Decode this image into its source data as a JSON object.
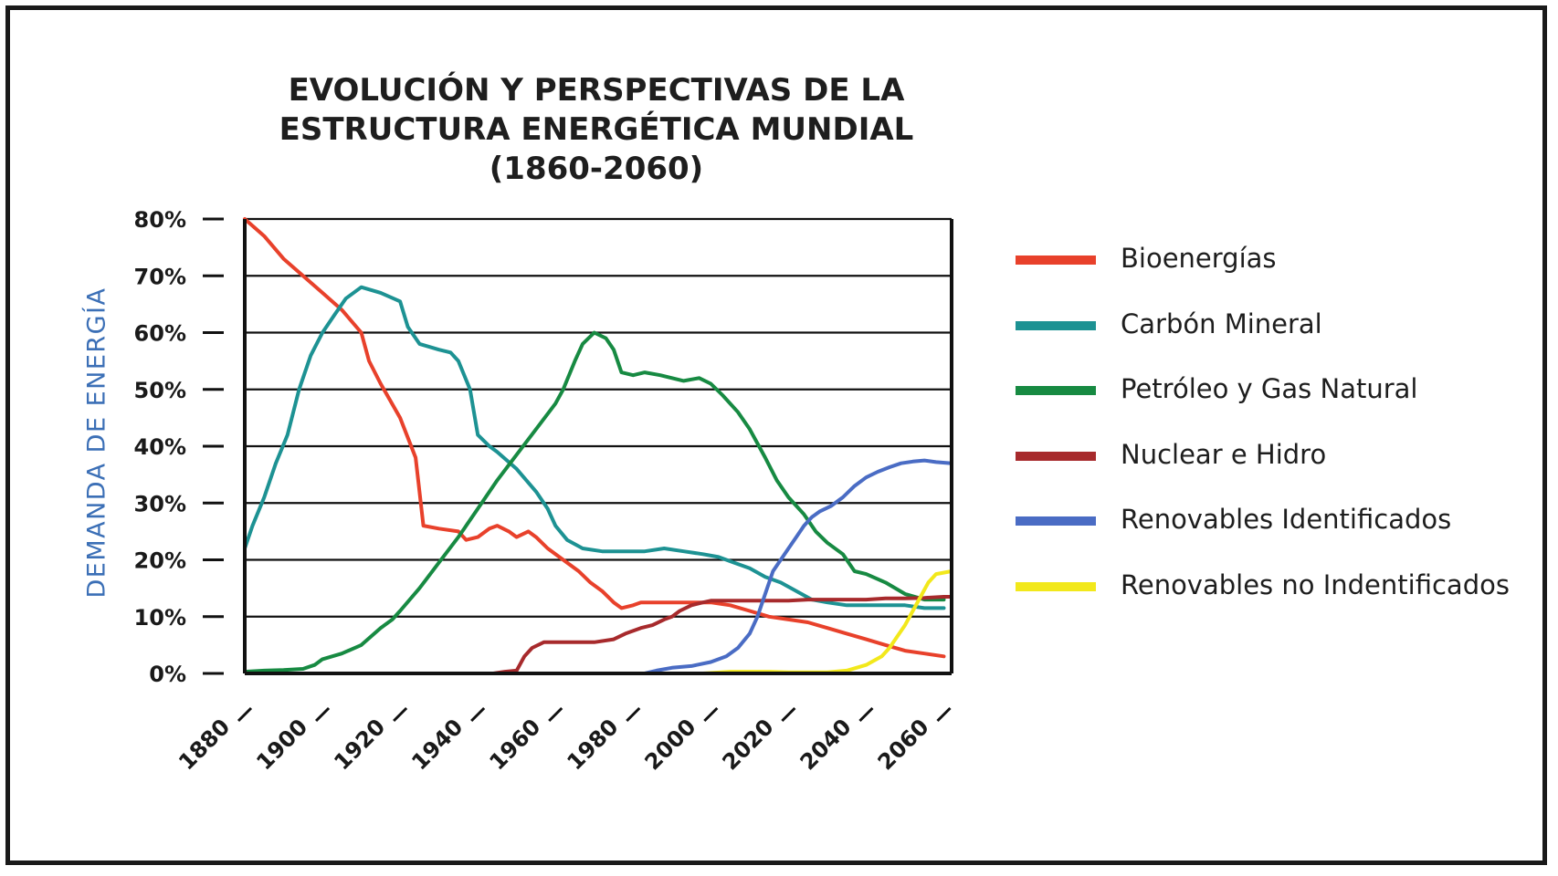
{
  "chart_data": {
    "type": "line",
    "title_lines": [
      "EVOLUCIÓN Y PERSPECTIVAS DE LA",
      "ESTRUCTURA ENERGÉTICA MUNDIAL",
      "(1860-2060)"
    ],
    "xlabel": "",
    "ylabel": "DEMANDA DE ENERGÍA",
    "xlim": [
      1880,
      2062
    ],
    "ylim": [
      0,
      80
    ],
    "x_ticks": [
      1880,
      1900,
      1920,
      1940,
      1960,
      1980,
      2000,
      2020,
      2040,
      2060
    ],
    "y_ticks": [
      0,
      10,
      20,
      30,
      40,
      50,
      60,
      70,
      80
    ],
    "y_tick_labels": [
      "0%",
      "10%",
      "20%",
      "30%",
      "40%",
      "50%",
      "60%",
      "70%",
      "80%"
    ],
    "grid": "horizontal",
    "legend_position": "right",
    "series": [
      {
        "name": "Bioenergías",
        "color": "#e8412b",
        "points": [
          [
            1880,
            80
          ],
          [
            1885,
            77
          ],
          [
            1890,
            73
          ],
          [
            1895,
            70
          ],
          [
            1900,
            67
          ],
          [
            1905,
            64
          ],
          [
            1910,
            60
          ],
          [
            1912,
            55
          ],
          [
            1915,
            51
          ],
          [
            1920,
            45
          ],
          [
            1924,
            38
          ],
          [
            1926,
            26
          ],
          [
            1930,
            25.5
          ],
          [
            1935,
            25
          ],
          [
            1937,
            23.5
          ],
          [
            1940,
            24
          ],
          [
            1943,
            25.5
          ],
          [
            1945,
            26
          ],
          [
            1948,
            25
          ],
          [
            1950,
            24
          ],
          [
            1953,
            25
          ],
          [
            1955,
            24
          ],
          [
            1958,
            22
          ],
          [
            1962,
            20
          ],
          [
            1966,
            18
          ],
          [
            1969,
            16
          ],
          [
            1972,
            14.5
          ],
          [
            1975,
            12.5
          ],
          [
            1977,
            11.5
          ],
          [
            1980,
            12
          ],
          [
            1982,
            12.5
          ],
          [
            1990,
            12.5
          ],
          [
            1995,
            12.5
          ],
          [
            2000,
            12.5
          ],
          [
            2005,
            12
          ],
          [
            2010,
            11
          ],
          [
            2015,
            10
          ],
          [
            2020,
            9.5
          ],
          [
            2025,
            9
          ],
          [
            2030,
            8
          ],
          [
            2035,
            7
          ],
          [
            2040,
            6
          ],
          [
            2045,
            5
          ],
          [
            2050,
            4
          ],
          [
            2055,
            3.5
          ],
          [
            2060,
            3
          ]
        ]
      },
      {
        "name": "Carbón Mineral",
        "color": "#1d9293",
        "points": [
          [
            1880,
            22
          ],
          [
            1882,
            26
          ],
          [
            1885,
            31
          ],
          [
            1888,
            37
          ],
          [
            1891,
            42
          ],
          [
            1894,
            50
          ],
          [
            1897,
            56
          ],
          [
            1900,
            60
          ],
          [
            1903,
            63
          ],
          [
            1906,
            66
          ],
          [
            1910,
            68
          ],
          [
            1915,
            67
          ],
          [
            1920,
            65.5
          ],
          [
            1922,
            61
          ],
          [
            1925,
            58
          ],
          [
            1930,
            57
          ],
          [
            1933,
            56.5
          ],
          [
            1935,
            55
          ],
          [
            1938,
            50
          ],
          [
            1940,
            42
          ],
          [
            1943,
            40
          ],
          [
            1945,
            39
          ],
          [
            1950,
            36
          ],
          [
            1955,
            32
          ],
          [
            1958,
            29
          ],
          [
            1960,
            26
          ],
          [
            1963,
            23.5
          ],
          [
            1967,
            22
          ],
          [
            1972,
            21.5
          ],
          [
            1977,
            21.5
          ],
          [
            1983,
            21.5
          ],
          [
            1988,
            22
          ],
          [
            1993,
            21.5
          ],
          [
            1998,
            21
          ],
          [
            2002,
            20.5
          ],
          [
            2006,
            19.5
          ],
          [
            2010,
            18.5
          ],
          [
            2014,
            17
          ],
          [
            2018,
            16
          ],
          [
            2022,
            14.5
          ],
          [
            2026,
            13
          ],
          [
            2030,
            12.5
          ],
          [
            2035,
            12
          ],
          [
            2040,
            12
          ],
          [
            2045,
            12
          ],
          [
            2050,
            12
          ],
          [
            2055,
            11.5
          ],
          [
            2060,
            11.5
          ]
        ]
      },
      {
        "name": "Petróleo y Gas Natural",
        "color": "#178a42",
        "points": [
          [
            1880,
            0.3
          ],
          [
            1885,
            0.5
          ],
          [
            1890,
            0.6
          ],
          [
            1895,
            0.8
          ],
          [
            1898,
            1.5
          ],
          [
            1900,
            2.5
          ],
          [
            1905,
            3.5
          ],
          [
            1910,
            5
          ],
          [
            1915,
            8
          ],
          [
            1918,
            9.5
          ],
          [
            1920,
            11
          ],
          [
            1925,
            15
          ],
          [
            1930,
            19.5
          ],
          [
            1935,
            24
          ],
          [
            1940,
            29
          ],
          [
            1945,
            34
          ],
          [
            1950,
            38.5
          ],
          [
            1955,
            43
          ],
          [
            1960,
            47.5
          ],
          [
            1962,
            50
          ],
          [
            1965,
            55
          ],
          [
            1967,
            58
          ],
          [
            1970,
            60
          ],
          [
            1973,
            59
          ],
          [
            1975,
            57
          ],
          [
            1977,
            53
          ],
          [
            1980,
            52.5
          ],
          [
            1983,
            53
          ],
          [
            1987,
            52.5
          ],
          [
            1990,
            52
          ],
          [
            1993,
            51.5
          ],
          [
            1997,
            52
          ],
          [
            2000,
            51
          ],
          [
            2003,
            49
          ],
          [
            2007,
            46
          ],
          [
            2010,
            43
          ],
          [
            2014,
            38
          ],
          [
            2017,
            34
          ],
          [
            2020,
            31
          ],
          [
            2024,
            28
          ],
          [
            2027,
            25
          ],
          [
            2030,
            23
          ],
          [
            2034,
            21
          ],
          [
            2037,
            18
          ],
          [
            2040,
            17.5
          ],
          [
            2045,
            16
          ],
          [
            2050,
            14
          ],
          [
            2055,
            13
          ],
          [
            2060,
            13
          ]
        ]
      },
      {
        "name": "Nuclear e Hidro",
        "color": "#a72a2c",
        "points": [
          [
            1944,
            0
          ],
          [
            1947,
            0.3
          ],
          [
            1950,
            0.5
          ],
          [
            1952,
            3
          ],
          [
            1954,
            4.5
          ],
          [
            1957,
            5.5
          ],
          [
            1960,
            5.5
          ],
          [
            1965,
            5.5
          ],
          [
            1970,
            5.5
          ],
          [
            1975,
            6
          ],
          [
            1978,
            7
          ],
          [
            1982,
            8
          ],
          [
            1985,
            8.5
          ],
          [
            1988,
            9.5
          ],
          [
            1990,
            10
          ],
          [
            1992,
            11
          ],
          [
            1995,
            12
          ],
          [
            1998,
            12.5
          ],
          [
            2000,
            12.8
          ],
          [
            2005,
            12.8
          ],
          [
            2010,
            12.8
          ],
          [
            2015,
            12.8
          ],
          [
            2020,
            12.8
          ],
          [
            2025,
            13
          ],
          [
            2030,
            13
          ],
          [
            2035,
            13
          ],
          [
            2040,
            13
          ],
          [
            2045,
            13.2
          ],
          [
            2050,
            13.2
          ],
          [
            2055,
            13.3
          ],
          [
            2060,
            13.5
          ],
          [
            2062,
            13.5
          ]
        ]
      },
      {
        "name": "Renovables Identificados",
        "color": "#4a6cc4",
        "points": [
          [
            1983,
            0
          ],
          [
            1986,
            0.5
          ],
          [
            1990,
            1
          ],
          [
            1995,
            1.3
          ],
          [
            2000,
            2
          ],
          [
            2004,
            3
          ],
          [
            2007,
            4.5
          ],
          [
            2010,
            7
          ],
          [
            2012,
            10
          ],
          [
            2014,
            14
          ],
          [
            2016,
            18
          ],
          [
            2018,
            20
          ],
          [
            2020,
            22
          ],
          [
            2022,
            24
          ],
          [
            2024,
            26
          ],
          [
            2026,
            27.5
          ],
          [
            2028,
            28.5
          ],
          [
            2031,
            29.5
          ],
          [
            2034,
            31
          ],
          [
            2037,
            33
          ],
          [
            2040,
            34.5
          ],
          [
            2043,
            35.5
          ],
          [
            2046,
            36.3
          ],
          [
            2049,
            37
          ],
          [
            2052,
            37.3
          ],
          [
            2055,
            37.5
          ],
          [
            2058,
            37.2
          ],
          [
            2062,
            37
          ]
        ]
      },
      {
        "name": "Renovables no Indentificados",
        "color": "#f2e81b",
        "points": [
          [
            1998,
            0
          ],
          [
            2005,
            0.3
          ],
          [
            2015,
            0.3
          ],
          [
            2020,
            0.2
          ],
          [
            2025,
            0.2
          ],
          [
            2030,
            0.2
          ],
          [
            2035,
            0.5
          ],
          [
            2040,
            1.5
          ],
          [
            2044,
            3
          ],
          [
            2046,
            4.5
          ],
          [
            2048,
            6.5
          ],
          [
            2050,
            8.5
          ],
          [
            2052,
            11
          ],
          [
            2054,
            13.5
          ],
          [
            2056,
            16
          ],
          [
            2058,
            17.5
          ],
          [
            2062,
            18
          ]
        ]
      }
    ]
  }
}
